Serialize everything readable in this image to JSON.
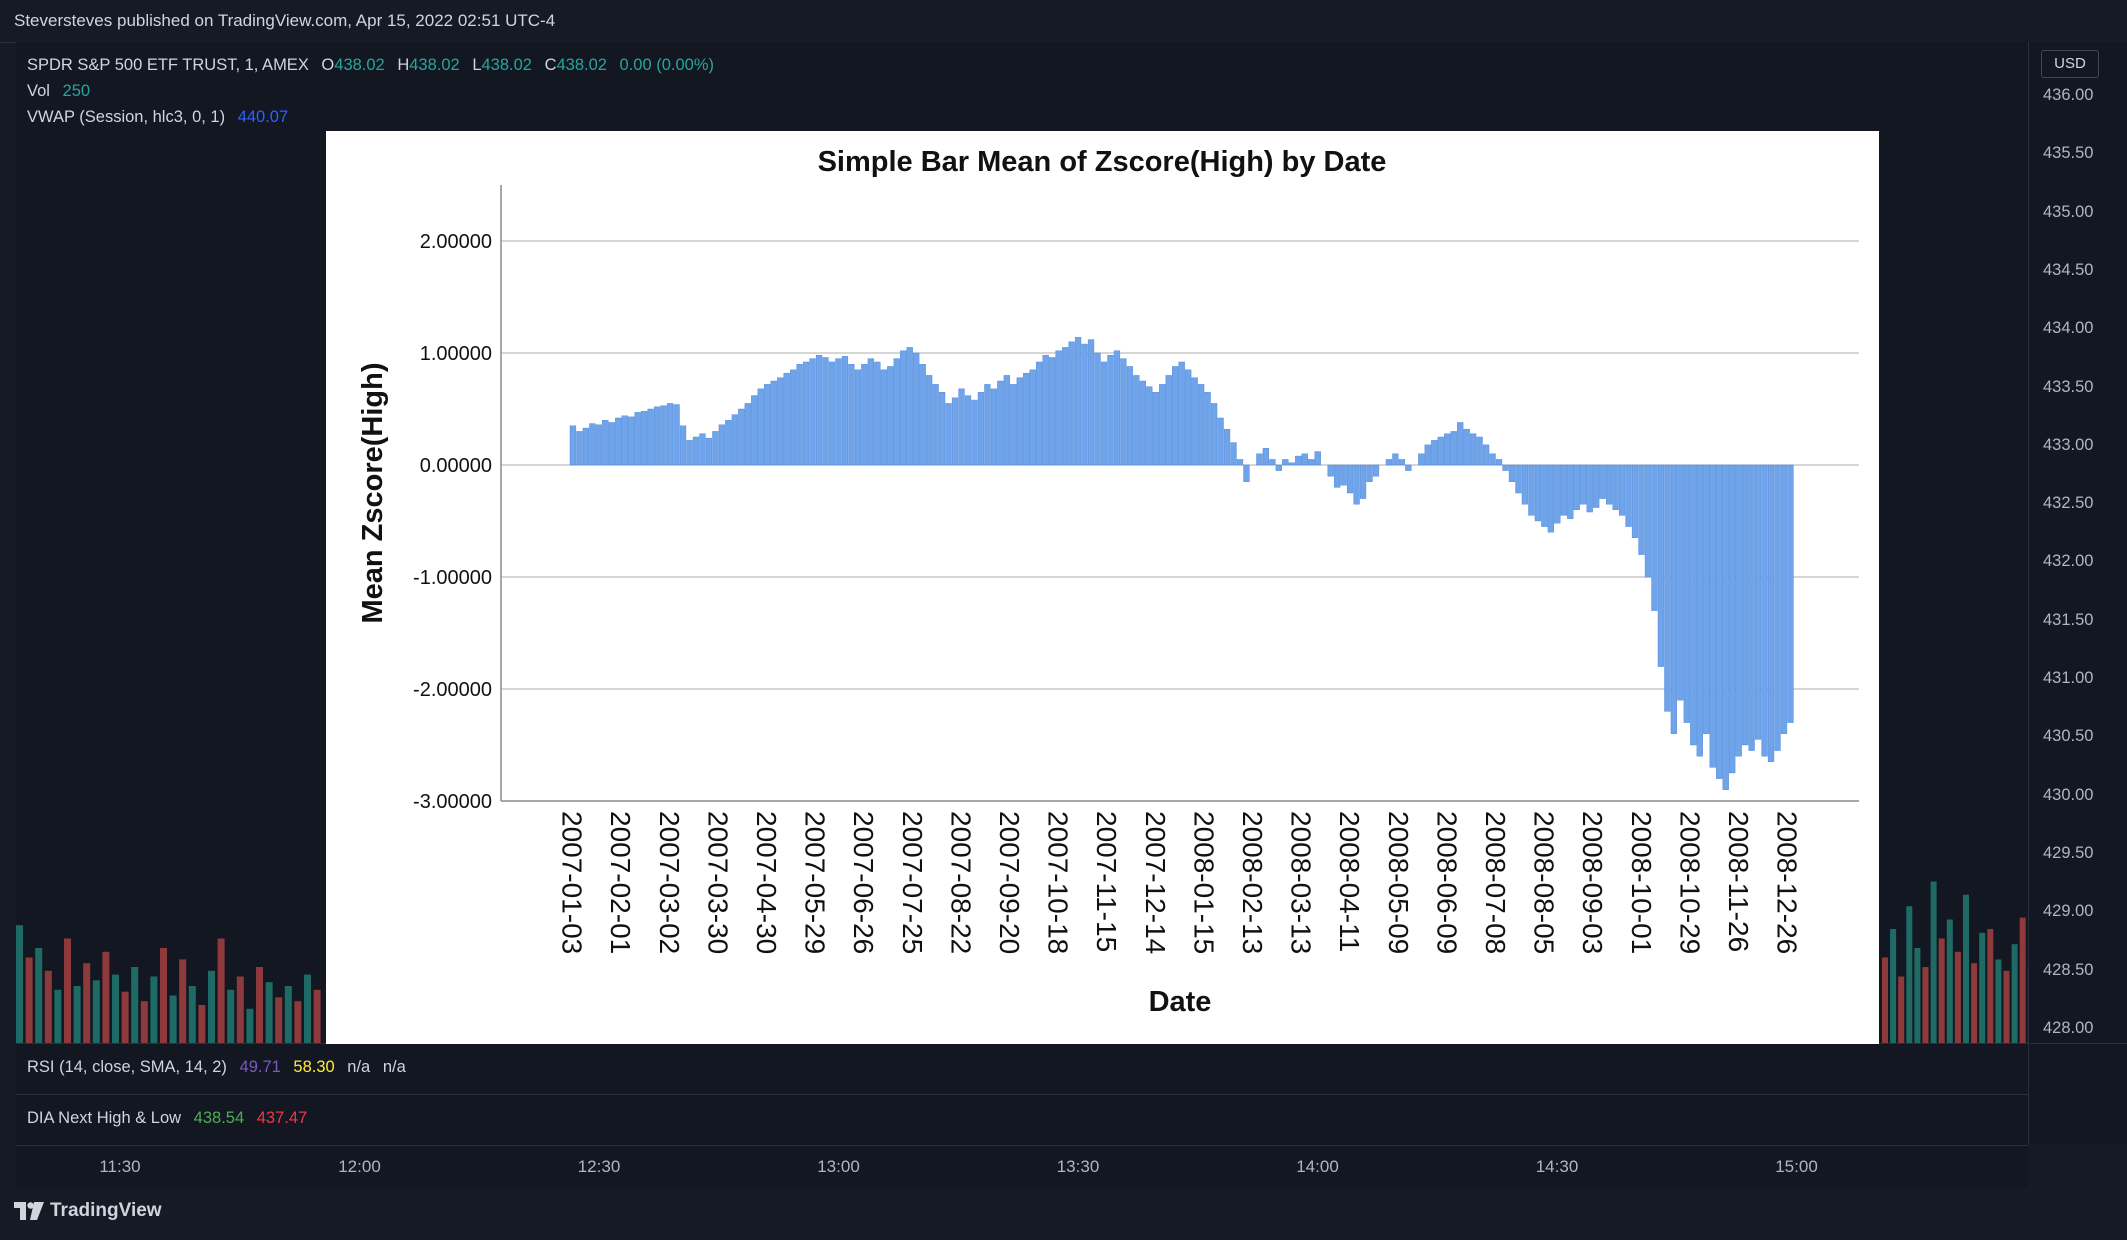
{
  "publisher_line": "Steversteves published on TradingView.com, Apr 15, 2022 02:51 UTC-4",
  "legend": {
    "symbol": "SPDR S&P 500 ETF TRUST, 1, AMEX",
    "open_label": "O",
    "open": "438.02",
    "high_label": "H",
    "high": "438.02",
    "low_label": "L",
    "low": "438.02",
    "close_label": "C",
    "close": "438.02",
    "change": "0.00 (0.00%)",
    "vol_label": "Vol",
    "vol": "250",
    "vwap_label": "VWAP (Session, hlc3, 0, 1)",
    "vwap": "440.07"
  },
  "price_scale": {
    "currency": "USD",
    "ticks": [
      "436.00",
      "435.50",
      "435.00",
      "434.50",
      "434.00",
      "433.50",
      "433.00",
      "432.50",
      "432.00",
      "431.50",
      "431.00",
      "430.50",
      "430.00",
      "429.50",
      "429.00",
      "428.50",
      "428.00"
    ]
  },
  "rsi_panel": {
    "label": "RSI (14, close, SMA, 14, 2)",
    "v1": "49.71",
    "v2": "58.30",
    "v3": "n/a",
    "v4": "n/a"
  },
  "dia_panel": {
    "label": "DIA Next High & Low",
    "high": "438.54",
    "low": "437.47"
  },
  "time_axis": {
    "ticks": [
      "11:30",
      "12:00",
      "12:30",
      "13:00",
      "13:30",
      "14:00",
      "14:30",
      "15:00"
    ]
  },
  "footer": {
    "brand": "TradingView"
  },
  "colors": {
    "up": "#26a69a",
    "down": "#ef5350",
    "bar_fill": "#6fa3ea",
    "bar_stroke": "#4a86d8"
  },
  "chart_data": {
    "type": "bar",
    "title": "Simple Bar Mean of Zscore(High) by Date",
    "xlabel": "Date",
    "ylabel": "Mean Zscore(High)",
    "ylim": [
      -3,
      2.5
    ],
    "y_ticks": [
      "2.00000",
      "1.00000",
      "0.00000",
      "-1.00000",
      "-2.00000",
      "-3.00000"
    ],
    "x_tick_labels": [
      "2007-01-03",
      "2007-02-01",
      "2007-03-02",
      "2007-03-30",
      "2007-04-30",
      "2007-05-29",
      "2007-06-26",
      "2007-07-25",
      "2007-08-22",
      "2007-09-20",
      "2007-10-18",
      "2007-11-15",
      "2007-12-14",
      "2008-01-15",
      "2008-02-13",
      "2008-03-13",
      "2008-04-11",
      "2008-05-09",
      "2008-06-09",
      "2008-07-08",
      "2008-08-05",
      "2008-09-03",
      "2008-10-01",
      "2008-10-29",
      "2008-11-26",
      "2008-12-26"
    ],
    "values": [
      0.35,
      0.3,
      0.33,
      0.37,
      0.36,
      0.4,
      0.38,
      0.42,
      0.44,
      0.43,
      0.47,
      0.48,
      0.5,
      0.52,
      0.53,
      0.55,
      0.54,
      0.35,
      0.22,
      0.25,
      0.28,
      0.24,
      0.3,
      0.36,
      0.4,
      0.45,
      0.5,
      0.55,
      0.62,
      0.68,
      0.72,
      0.75,
      0.78,
      0.82,
      0.85,
      0.9,
      0.92,
      0.95,
      0.98,
      0.96,
      0.92,
      0.95,
      0.97,
      0.9,
      0.85,
      0.9,
      0.95,
      0.92,
      0.85,
      0.88,
      0.95,
      1.02,
      1.05,
      1.0,
      0.9,
      0.8,
      0.72,
      0.65,
      0.55,
      0.6,
      0.68,
      0.62,
      0.58,
      0.65,
      0.72,
      0.68,
      0.75,
      0.8,
      0.72,
      0.78,
      0.82,
      0.85,
      0.92,
      0.98,
      0.96,
      1.02,
      1.05,
      1.1,
      1.14,
      1.08,
      1.12,
      1.0,
      0.92,
      0.98,
      1.02,
      0.95,
      0.88,
      0.8,
      0.75,
      0.7,
      0.65,
      0.72,
      0.8,
      0.88,
      0.92,
      0.85,
      0.78,
      0.72,
      0.65,
      0.55,
      0.42,
      0.32,
      0.2,
      0.05,
      -0.15,
      0.0,
      0.1,
      0.15,
      0.05,
      -0.05,
      0.05,
      0.02,
      0.08,
      0.1,
      0.05,
      0.12,
      0.0,
      -0.1,
      -0.2,
      -0.18,
      -0.25,
      -0.35,
      -0.3,
      -0.15,
      -0.1,
      0.0,
      0.05,
      0.1,
      0.05,
      -0.05,
      0.0,
      0.1,
      0.18,
      0.22,
      0.25,
      0.28,
      0.3,
      0.38,
      0.32,
      0.28,
      0.25,
      0.18,
      0.1,
      0.05,
      -0.05,
      -0.15,
      -0.25,
      -0.35,
      -0.45,
      -0.5,
      -0.55,
      -0.6,
      -0.52,
      -0.45,
      -0.48,
      -0.4,
      -0.35,
      -0.42,
      -0.38,
      -0.3,
      -0.35,
      -0.4,
      -0.45,
      -0.55,
      -0.65,
      -0.8,
      -1.0,
      -1.3,
      -1.8,
      -2.2,
      -2.4,
      -2.1,
      -2.3,
      -2.5,
      -2.6,
      -2.4,
      -2.7,
      -2.8,
      -2.9,
      -2.75,
      -2.6,
      -2.5,
      -2.55,
      -2.45,
      -2.6,
      -2.65,
      -2.55,
      -2.4,
      -2.3
    ]
  },
  "volume_bars": [
    {
      "h": 0.62,
      "up": true
    },
    {
      "h": 0.45,
      "up": false
    },
    {
      "h": 0.5,
      "up": true
    },
    {
      "h": 0.38,
      "up": false
    },
    {
      "h": 0.28,
      "up": true
    },
    {
      "h": 0.55,
      "up": false
    },
    {
      "h": 0.3,
      "up": true
    },
    {
      "h": 0.42,
      "up": false
    },
    {
      "h": 0.33,
      "up": true
    },
    {
      "h": 0.48,
      "up": false
    },
    {
      "h": 0.36,
      "up": true
    },
    {
      "h": 0.27,
      "up": false
    },
    {
      "h": 0.4,
      "up": true
    },
    {
      "h": 0.22,
      "up": false
    },
    {
      "h": 0.35,
      "up": true
    },
    {
      "h": 0.5,
      "up": false
    },
    {
      "h": 0.25,
      "up": true
    },
    {
      "h": 0.44,
      "up": false
    },
    {
      "h": 0.3,
      "up": true
    },
    {
      "h": 0.2,
      "up": false
    },
    {
      "h": 0.38,
      "up": true
    },
    {
      "h": 0.55,
      "up": false
    },
    {
      "h": 0.28,
      "up": true
    },
    {
      "h": 0.35,
      "up": false
    },
    {
      "h": 0.18,
      "up": true
    },
    {
      "h": 0.4,
      "up": false
    },
    {
      "h": 0.32,
      "up": true
    },
    {
      "h": 0.24,
      "up": false
    },
    {
      "h": 0.3,
      "up": true
    },
    {
      "h": 0.22,
      "up": false
    },
    {
      "h": 0.36,
      "up": true
    },
    {
      "h": 0.28,
      "up": false
    }
  ],
  "volume_bars_right": [
    {
      "h": 0.45,
      "up": false
    },
    {
      "h": 0.6,
      "up": true
    },
    {
      "h": 0.35,
      "up": false
    },
    {
      "h": 0.72,
      "up": true
    },
    {
      "h": 0.5,
      "up": true
    },
    {
      "h": 0.4,
      "up": false
    },
    {
      "h": 0.85,
      "up": true
    },
    {
      "h": 0.55,
      "up": false
    },
    {
      "h": 0.65,
      "up": true
    },
    {
      "h": 0.48,
      "up": false
    },
    {
      "h": 0.78,
      "up": true
    },
    {
      "h": 0.42,
      "up": false
    },
    {
      "h": 0.58,
      "up": true
    },
    {
      "h": 0.6,
      "up": false
    },
    {
      "h": 0.44,
      "up": true
    },
    {
      "h": 0.38,
      "up": false
    },
    {
      "h": 0.52,
      "up": true
    },
    {
      "h": 0.66,
      "up": false
    },
    {
      "h": 0.4,
      "up": true
    },
    {
      "h": 0.45,
      "up": false
    },
    {
      "h": 0.55,
      "up": true
    },
    {
      "h": 0.35,
      "up": false
    },
    {
      "h": 0.42,
      "up": true
    },
    {
      "h": 0.82,
      "up": true
    }
  ]
}
